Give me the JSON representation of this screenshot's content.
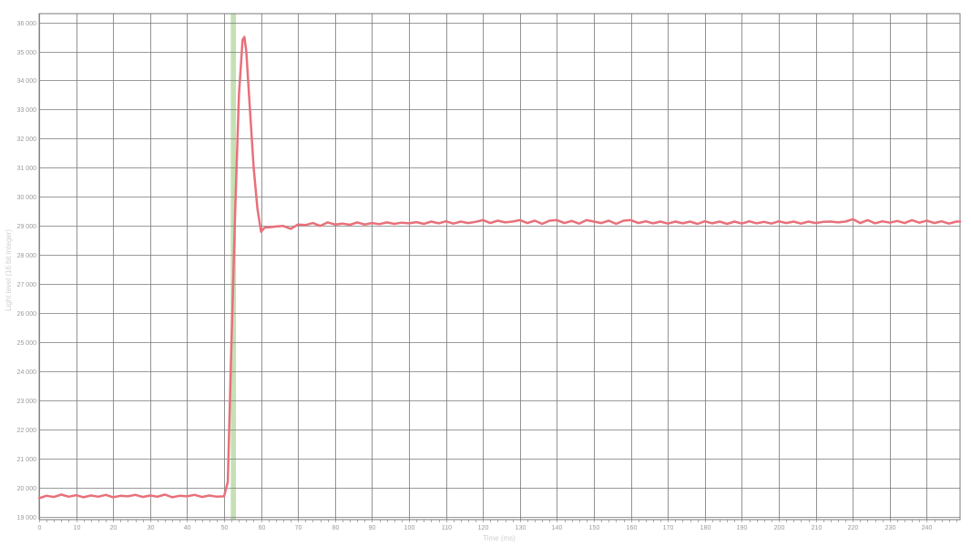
{
  "chart_data": {
    "type": "line",
    "title": "",
    "xlabel": "Time (ms)",
    "ylabel": "Light level (16 bit integer)",
    "xlim": [
      0,
      249
    ],
    "ylim": [
      18900,
      36300
    ],
    "x_ticks": [
      0,
      10,
      20,
      30,
      40,
      50,
      60,
      70,
      80,
      90,
      100,
      110,
      120,
      130,
      140,
      150,
      160,
      170,
      180,
      190,
      200,
      210,
      220,
      230,
      240
    ],
    "x_tick_labels": [
      "0",
      "10",
      "20",
      "30",
      "40",
      "50",
      "60",
      "70",
      "80",
      "90",
      "100",
      "110",
      "120",
      "130",
      "140",
      "150",
      "160",
      "170",
      "180",
      "190",
      "200",
      "210",
      "220",
      "230",
      "240"
    ],
    "y_ticks": [
      19000,
      20000,
      21000,
      22000,
      23000,
      24000,
      25000,
      26000,
      27000,
      28000,
      29000,
      30000,
      31000,
      32000,
      33000,
      34000,
      35000,
      36000
    ],
    "y_tick_labels": [
      "19 000",
      "20 000",
      "21 000",
      "22 000",
      "23 000",
      "24 000",
      "25 000",
      "26 000",
      "27 000",
      "28 000",
      "29 000",
      "30 000",
      "31 000",
      "32 000",
      "33 000",
      "34 000",
      "35 000",
      "36 000"
    ],
    "grid": true,
    "colors": {
      "series": "#e8707a",
      "highlight_band": "#c5e0b4",
      "grid": "#7a7a7a",
      "tick_label": "#9a9a9a",
      "axis_title": "#cfcfcf"
    },
    "highlight_band": {
      "x_start": 51.8,
      "x_end": 53.2
    },
    "series": [
      {
        "x": [
          0,
          2,
          4,
          6,
          8,
          10,
          12,
          14,
          16,
          18,
          20,
          22,
          24,
          26,
          28,
          30,
          32,
          34,
          36,
          38,
          40,
          42,
          44,
          46,
          48,
          50,
          51,
          52,
          53,
          54,
          55,
          55.5,
          56,
          57,
          58,
          59,
          60,
          61,
          62,
          64,
          66,
          68,
          70,
          72,
          74,
          76,
          78,
          80,
          82,
          84,
          86,
          88,
          90,
          92,
          94,
          96,
          98,
          100,
          102,
          104,
          106,
          108,
          110,
          112,
          114,
          116,
          118,
          120,
          122,
          124,
          126,
          128,
          130,
          132,
          134,
          136,
          138,
          140,
          142,
          144,
          146,
          148,
          150,
          152,
          154,
          156,
          158,
          160,
          162,
          164,
          166,
          168,
          170,
          172,
          174,
          176,
          178,
          180,
          182,
          184,
          186,
          188,
          190,
          192,
          194,
          196,
          198,
          200,
          202,
          204,
          206,
          208,
          210,
          212,
          214,
          216,
          218,
          220,
          222,
          224,
          226,
          228,
          230,
          232,
          234,
          236,
          238,
          240,
          242,
          244,
          246,
          248,
          249
        ],
        "y": [
          19640,
          19720,
          19680,
          19760,
          19690,
          19740,
          19670,
          19730,
          19690,
          19750,
          19670,
          19720,
          19700,
          19750,
          19680,
          19730,
          19690,
          19760,
          19670,
          19720,
          19700,
          19750,
          19680,
          19730,
          19690,
          19700,
          20200,
          25000,
          29500,
          33500,
          35400,
          35500,
          35000,
          33000,
          31000,
          29600,
          28800,
          28950,
          28950,
          28980,
          29000,
          28900,
          29050,
          29030,
          29100,
          29000,
          29120,
          29050,
          29080,
          29040,
          29120,
          29050,
          29100,
          29060,
          29120,
          29070,
          29110,
          29090,
          29130,
          29070,
          29150,
          29090,
          29160,
          29080,
          29150,
          29100,
          29140,
          29200,
          29100,
          29180,
          29120,
          29150,
          29200,
          29100,
          29180,
          29070,
          29180,
          29200,
          29100,
          29170,
          29080,
          29200,
          29150,
          29100,
          29180,
          29070,
          29180,
          29200,
          29100,
          29160,
          29090,
          29150,
          29080,
          29150,
          29090,
          29150,
          29070,
          29160,
          29090,
          29150,
          29070,
          29150,
          29080,
          29160,
          29090,
          29140,
          29080,
          29160,
          29100,
          29150,
          29080,
          29150,
          29100,
          29140,
          29150,
          29120,
          29150,
          29230,
          29100,
          29200,
          29090,
          29160,
          29110,
          29170,
          29100,
          29200,
          29110,
          29180,
          29100,
          29160,
          29080,
          29150,
          29150
        ]
      }
    ]
  }
}
